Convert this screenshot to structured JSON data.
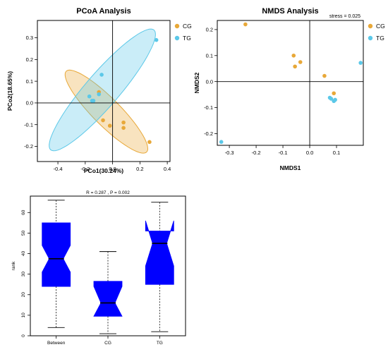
{
  "chart_data": [
    {
      "type": "scatter",
      "title": "PCoA Analysis",
      "xlabel": "PCo1(30.24%)",
      "ylabel": "PCo2(18.65%)",
      "xlim": [
        -0.55,
        0.42
      ],
      "ylim": [
        -0.27,
        0.38
      ],
      "xticks": [
        -0.4,
        -0.2,
        0.0,
        0.2,
        0.4
      ],
      "xtick_labels": [
        "-0.4",
        "-0.2",
        "0.0",
        "0.2",
        "0.4"
      ],
      "yticks": [
        -0.2,
        -0.1,
        0.0,
        0.1,
        0.2,
        0.3
      ],
      "ytick_labels": [
        "-0.2",
        "-0.1",
        "0.0",
        "0.1",
        "0.2",
        "0.3"
      ],
      "legend": "top-right",
      "grid": false,
      "series": [
        {
          "name": "CG",
          "color": "#E8A838",
          "points": [
            [
              -0.1,
              0.05
            ],
            [
              -0.07,
              -0.08
            ],
            [
              -0.02,
              -0.105
            ],
            [
              0.08,
              -0.09
            ],
            [
              0.08,
              -0.115
            ],
            [
              0.27,
              -0.18
            ]
          ],
          "ellipse": {
            "cx": -0.045,
            "cy": -0.04,
            "semi_major": 0.35,
            "semi_minor": 0.075,
            "angle_deg": -31
          }
        },
        {
          "name": "TG",
          "color": "#5BC8E8",
          "points": [
            [
              -0.08,
              0.13
            ],
            [
              -0.17,
              0.03
            ],
            [
              -0.15,
              0.01
            ],
            [
              -0.14,
              0.01
            ],
            [
              -0.1,
              0.04
            ],
            [
              0.32,
              0.29
            ]
          ],
          "ellipse": {
            "cx": -0.075,
            "cy": 0.06,
            "semi_major": 0.47,
            "semi_minor": 0.095,
            "angle_deg": 35
          }
        }
      ]
    },
    {
      "type": "scatter",
      "title": "NMDS Analysis",
      "annotation": "stress = 0.025",
      "xlabel": "NMDS1",
      "ylabel": "NMDS2",
      "xlim": [
        -0.345,
        0.2
      ],
      "ylim": [
        -0.245,
        0.235
      ],
      "xticks": [
        -0.3,
        -0.2,
        -0.1,
        0.0,
        0.1
      ],
      "xtick_labels": [
        "-0.3",
        "-0.2",
        "-0.1",
        "0.0",
        "0.1"
      ],
      "yticks": [
        -0.2,
        -0.1,
        0.0,
        0.1,
        0.2
      ],
      "ytick_labels": [
        "-0.2",
        "-0.1",
        "0.0",
        "0.1",
        "0.2"
      ],
      "legend": "top-right",
      "grid": false,
      "series": [
        {
          "name": "CG",
          "color": "#E8A838",
          "points": [
            [
              -0.24,
              0.22
            ],
            [
              -0.06,
              0.1
            ],
            [
              -0.035,
              0.075
            ],
            [
              -0.055,
              0.058
            ],
            [
              0.055,
              0.022
            ],
            [
              0.09,
              -0.045
            ]
          ]
        },
        {
          "name": "TG",
          "color": "#5BC8E8",
          "points": [
            [
              -0.33,
              -0.232
            ],
            [
              0.075,
              -0.062
            ],
            [
              0.08,
              -0.066
            ],
            [
              0.09,
              -0.075
            ],
            [
              0.095,
              -0.07
            ],
            [
              0.19,
              0.072
            ]
          ]
        }
      ]
    },
    {
      "type": "boxplot",
      "title": "R = 0.287 , P = 0.002",
      "xlabel": "",
      "ylabel": "rank",
      "ylim": [
        0,
        68
      ],
      "yticks": [
        0,
        10,
        20,
        30,
        40,
        50,
        60
      ],
      "ytick_labels": [
        "0",
        "10",
        "20",
        "30",
        "40",
        "50",
        "60"
      ],
      "categories": [
        "Between",
        "CG",
        "TG"
      ],
      "box_color": "#0000FF",
      "boxes": [
        {
          "name": "Between",
          "whisker_low": 4,
          "q1": 24,
          "median": 37.5,
          "q3": 55,
          "whisker_high": 66,
          "notch_low": 31,
          "notch_high": 44
        },
        {
          "name": "CG",
          "whisker_low": 1,
          "q1": 9.5,
          "median": 16,
          "q3": 26.5,
          "whisker_high": 41,
          "notch_low": 9.5,
          "notch_high": 24
        },
        {
          "name": "TG",
          "whisker_low": 2,
          "q1": 25,
          "median": 45,
          "q3": 51,
          "whisker_high": 65,
          "notch_low": 34,
          "notch_high": 56
        }
      ]
    }
  ]
}
